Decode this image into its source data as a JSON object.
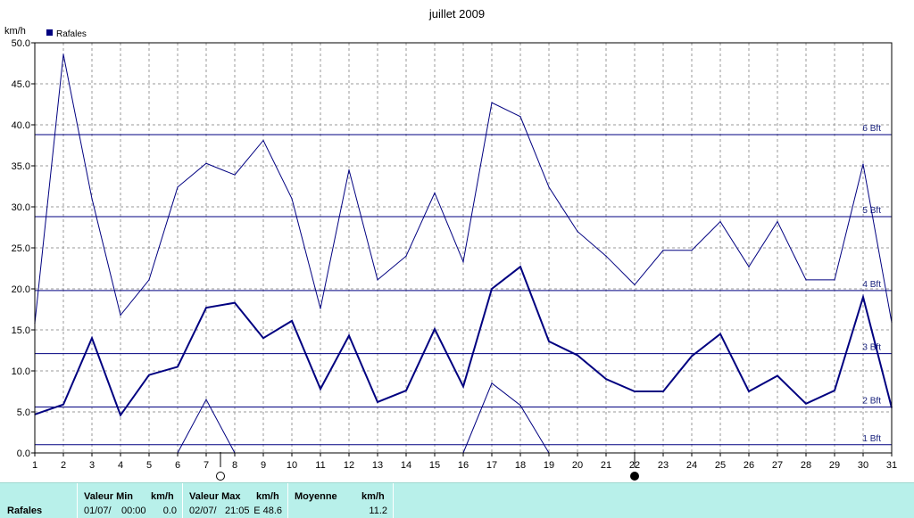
{
  "chart_data": {
    "type": "line",
    "title": "juillet 2009",
    "ylabel": "km/h",
    "legend": {
      "label": "Rafales",
      "color": "#000080",
      "placement": "top-left"
    },
    "x": [
      1,
      2,
      3,
      4,
      5,
      6,
      7,
      8,
      9,
      10,
      11,
      12,
      13,
      14,
      15,
      16,
      17,
      18,
      19,
      20,
      21,
      22,
      23,
      24,
      25,
      26,
      27,
      28,
      29,
      30,
      31
    ],
    "ylim": [
      0,
      50
    ],
    "yticks": [
      "0.0",
      "5.0",
      "10.0",
      "15.0",
      "20.0",
      "25.0",
      "30.0",
      "35.0",
      "40.0",
      "45.0",
      "50.0"
    ],
    "grid": true,
    "series": [
      {
        "role": "max",
        "values": [
          15.8,
          48.6,
          31.0,
          16.8,
          21.1,
          32.4,
          35.3,
          33.9,
          38.1,
          31.0,
          17.6,
          34.5,
          21.1,
          24.0,
          31.7,
          23.3,
          42.7,
          41.0,
          32.4,
          27.0,
          24.0,
          20.5,
          24.7,
          24.7,
          28.2,
          22.7,
          28.2,
          21.1,
          21.1,
          35.2,
          15.9
        ]
      },
      {
        "role": "average",
        "values": [
          4.7,
          5.9,
          14.0,
          4.6,
          9.5,
          10.5,
          17.7,
          18.3,
          14.0,
          16.1,
          7.8,
          14.3,
          6.2,
          7.6,
          15.1,
          8.1,
          20.0,
          22.7,
          13.6,
          11.9,
          9.0,
          7.5,
          7.5,
          11.8,
          14.5,
          7.5,
          9.4,
          6.0,
          7.6,
          19.0,
          5.5
        ]
      },
      {
        "role": "min",
        "values": [
          null,
          null,
          null,
          null,
          null,
          0.0,
          6.5,
          0.0,
          null,
          null,
          null,
          null,
          null,
          null,
          null,
          0.0,
          8.5,
          5.8,
          0.0,
          null,
          null,
          null,
          null,
          null,
          null,
          null,
          null,
          null,
          null,
          null,
          null
        ]
      }
    ],
    "beaufort_lines": [
      {
        "label": "1 Bft",
        "value": 1.0
      },
      {
        "label": "2 Bft",
        "value": 5.6
      },
      {
        "label": "3 Bft",
        "value": 12.1
      },
      {
        "label": "4 Bft",
        "value": 19.8
      },
      {
        "label": "5 Bft",
        "value": 28.8
      },
      {
        "label": "6 Bft",
        "value": 38.8
      }
    ],
    "moon_phases": [
      {
        "day": 7.5,
        "phase": "full"
      },
      {
        "day": 22,
        "phase": "new"
      }
    ]
  },
  "stats": {
    "row_label": "Rafales",
    "min": {
      "header": "Valeur Min",
      "unit": "km/h",
      "date": "01/07/",
      "time": "00:00",
      "value": "0.0"
    },
    "max": {
      "header": "Valeur Max",
      "unit": "km/h",
      "date": "02/07/",
      "time": "21:05",
      "value": "E 48.6"
    },
    "avg": {
      "header": "Moyenne",
      "unit": "km/h",
      "value": "11.2"
    }
  },
  "colors": {
    "series": "#000080",
    "stats_bg": "#b8f0ea"
  }
}
